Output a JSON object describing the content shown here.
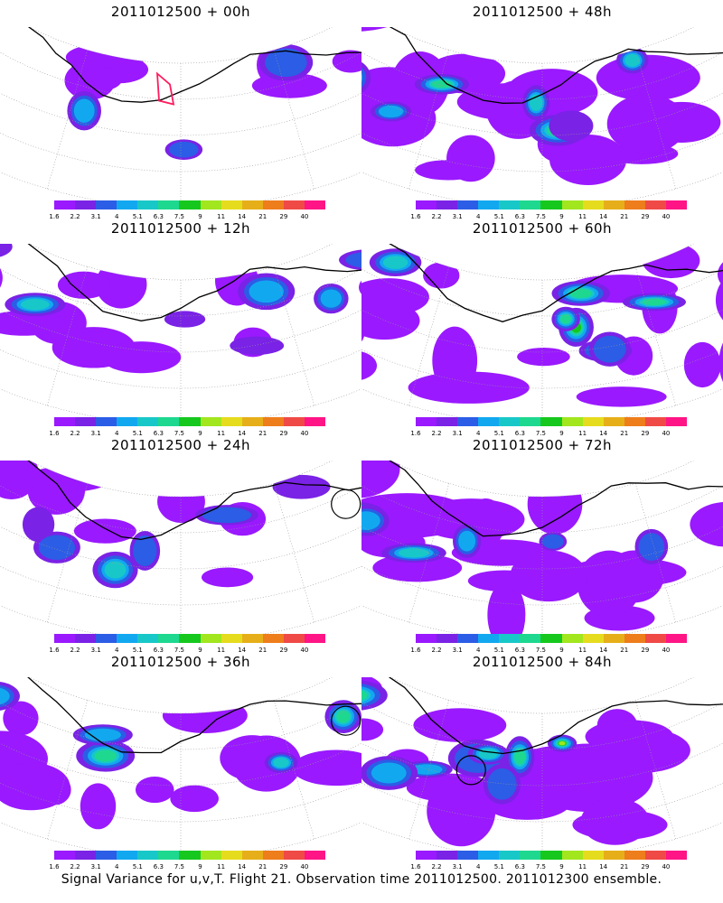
{
  "panels": [
    {
      "title": "2011012500 + 00h",
      "spread": 0.15,
      "intensity": 0.35,
      "circle": null,
      "redbox": true
    },
    {
      "title": "2011012500 + 48h",
      "spread": 0.75,
      "intensity": 0.55,
      "circle": null,
      "redbox": false
    },
    {
      "title": "2011012500 + 12h",
      "spread": 0.35,
      "intensity": 0.4,
      "circle": null,
      "redbox": false
    },
    {
      "title": "2011012500 + 60h",
      "spread": 0.85,
      "intensity": 0.65,
      "circle": null,
      "redbox": false
    },
    {
      "title": "2011012500 + 24h",
      "spread": 0.45,
      "intensity": 0.45,
      "circle": "right",
      "redbox": false
    },
    {
      "title": "2011012500 + 72h",
      "spread": 0.9,
      "intensity": 0.7,
      "circle": null,
      "redbox": false
    },
    {
      "title": "2011012500 + 36h",
      "spread": 0.55,
      "intensity": 0.5,
      "circle": "right",
      "redbox": false
    },
    {
      "title": "2011012500 + 84h",
      "spread": 0.95,
      "intensity": 0.75,
      "circle": "left",
      "redbox": false
    }
  ],
  "colorbar": {
    "labels": [
      "1.6",
      "2.2",
      "3.1",
      "4",
      "5.1",
      "6.3",
      "7.5",
      "9",
      "11",
      "14",
      "21",
      "29",
      "40"
    ],
    "colors": [
      "#9a19ff",
      "#7a22e6",
      "#2b5de6",
      "#12a8f0",
      "#18c8c8",
      "#1ed890",
      "#16c81e",
      "#a2e61e",
      "#e6dc1e",
      "#e6af19",
      "#ee7d1c",
      "#f04a46",
      "#ff1585"
    ]
  },
  "footer": "Signal Variance for u,v,T. Flight 21. Observation time 2011012500. 2011012300 ensemble."
}
